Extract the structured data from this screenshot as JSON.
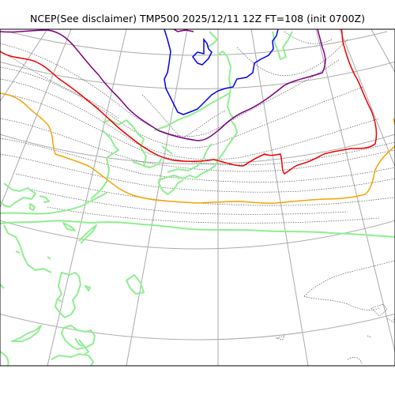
{
  "title": "NCEP(See disclaimer) TMP500 2025/12/11 12Z FT=108 (init 0700Z)",
  "legend_colors": {
    "coastline": "#90ee90",
    "isotherm_blue": "#0000ee",
    "isotherm_purple": "#800080",
    "isotherm_red": "#ee0000",
    "isotherm_orange": "#f5a300",
    "other_isotherms": "#666666",
    "graticule": "#aaaaaa"
  }
}
